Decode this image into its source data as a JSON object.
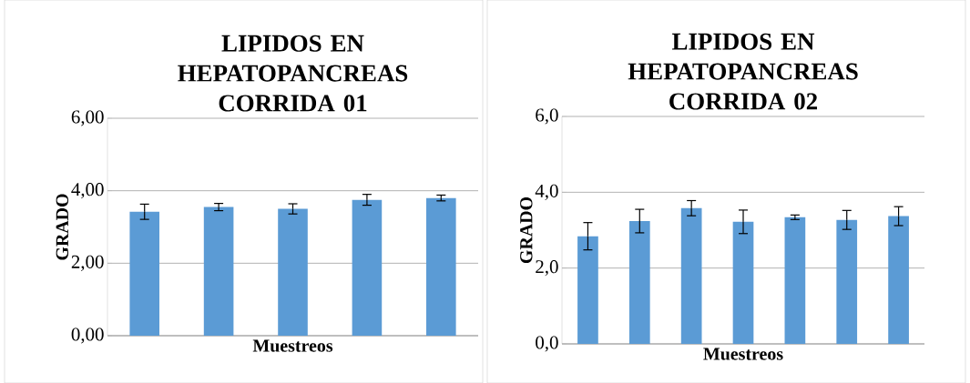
{
  "chart_data": [
    {
      "type": "bar",
      "title": "LIPIDOS EN HEPATOPANCREAS CORRIDA 01",
      "xlabel": "Muestreos",
      "ylabel": "GRADO",
      "categories": [
        null,
        null,
        null,
        null,
        null
      ],
      "values": [
        3.42,
        3.55,
        3.5,
        3.75,
        3.8
      ],
      "errors": [
        0.21,
        0.1,
        0.14,
        0.15,
        0.08
      ],
      "color": "#5b9bd5",
      "ylim": [
        0,
        6
      ],
      "yticks": [
        {
          "value": 0,
          "label": "0,00"
        },
        {
          "value": 2,
          "label": "2,00"
        },
        {
          "value": 4,
          "label": "4,00"
        },
        {
          "value": 6,
          "label": "6,00"
        }
      ],
      "grid": "y",
      "tick_labels": "y"
    },
    {
      "type": "bar",
      "title": "LIPIDOS EN HEPATOPANCREAS CORRIDA 02",
      "xlabel": "Muestreos",
      "ylabel": "GRADO",
      "categories": [
        null,
        null,
        null,
        null,
        null,
        null,
        null
      ],
      "values": [
        2.84,
        3.24,
        3.58,
        3.22,
        3.34,
        3.27,
        3.37
      ],
      "errors": [
        0.36,
        0.31,
        0.2,
        0.31,
        0.06,
        0.25,
        0.25
      ],
      "color": "#5b9bd5",
      "ylim": [
        0,
        6
      ],
      "yticks": [
        {
          "value": 0,
          "label": "0,0"
        },
        {
          "value": 2,
          "label": "2,0"
        },
        {
          "value": 4,
          "label": "4,0"
        },
        {
          "value": 6,
          "label": "6,0"
        }
      ],
      "grid": "y",
      "tick_labels": "y"
    }
  ]
}
